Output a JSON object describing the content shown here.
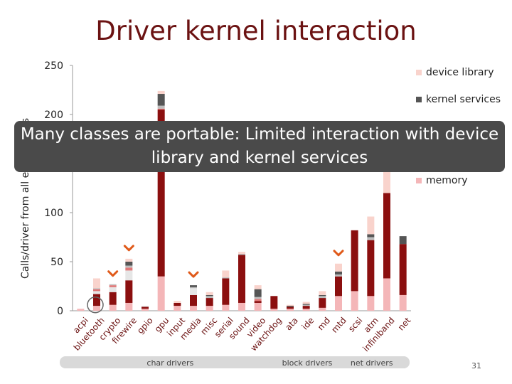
{
  "slide": {
    "title": "Driver kernel interaction",
    "callout": "Many classes are portable: Limited interaction with device library and kernel services",
    "slide_number": "31"
  },
  "chart_data": {
    "type": "bar",
    "stacked": true,
    "ylabel": "Calls/driver from all entry points",
    "ylim": [
      0,
      250
    ],
    "yticks": [
      0,
      50,
      100,
      200,
      250
    ],
    "categories": [
      "acpi",
      "bluetooth",
      "crypto",
      "firewire",
      "gpio",
      "gpu",
      "input",
      "media",
      "misc",
      "serial",
      "sound",
      "video",
      "watchdog",
      "ata",
      "ide",
      "md",
      "mtd",
      "scsi",
      "atm",
      "infiniband",
      "net"
    ],
    "series": [
      {
        "name": "memory",
        "color": "#f4b6b8",
        "values": [
          2,
          5,
          6,
          8,
          2,
          35,
          5,
          5,
          5,
          6,
          8,
          8,
          2,
          2,
          2,
          3,
          15,
          20,
          15,
          33,
          16
        ]
      },
      {
        "name": "",
        "color": "#8b0f0f",
        "values": [
          0,
          12,
          13,
          23,
          2,
          170,
          3,
          11,
          8,
          27,
          49,
          2,
          13,
          2,
          3,
          10,
          20,
          62,
          57,
          87,
          52
        ]
      },
      {
        "name": "",
        "color": "#e6e6e6",
        "values": [
          0,
          3,
          5,
          10,
          1,
          0,
          0,
          7,
          0,
          0,
          0,
          0,
          0,
          0,
          0,
          0,
          0,
          0,
          0,
          0,
          0
        ]
      },
      {
        "name": "",
        "color": "#e07878",
        "values": [
          0,
          2,
          2,
          3,
          0,
          1,
          0,
          0,
          0,
          0,
          0,
          2,
          0,
          0,
          0,
          0,
          0,
          0,
          0,
          0,
          0
        ]
      },
      {
        "name": "",
        "color": "#bdbdbd",
        "values": [
          0,
          1,
          1,
          2,
          0,
          3,
          0,
          1,
          2,
          1,
          1,
          2,
          0,
          0,
          1,
          2,
          2,
          0,
          3,
          0,
          0
        ]
      },
      {
        "name": "kernel services",
        "color": "#555555",
        "values": [
          0,
          0,
          0,
          4,
          0,
          12,
          0,
          2,
          1,
          0,
          0,
          8,
          0,
          1,
          1,
          1,
          3,
          0,
          3,
          0,
          8
        ]
      },
      {
        "name": "device library",
        "color": "#f9d3cc",
        "values": [
          0,
          10,
          0,
          3,
          0,
          3,
          2,
          0,
          3,
          7,
          2,
          4,
          0,
          1,
          2,
          4,
          8,
          0,
          18,
          40,
          0
        ]
      }
    ],
    "legend": [
      "device library",
      "kernel services",
      "memory"
    ],
    "legend_position": "right",
    "highlighted_categories": [
      "crypto",
      "firewire",
      "media",
      "mtd"
    ],
    "circled_category": "bluetooth",
    "groups": [
      {
        "label": "char drivers",
        "from": "acpi",
        "to": "watchdog"
      },
      {
        "label": "block drivers",
        "from": "ata",
        "to": "mtd"
      },
      {
        "label": "net drivers",
        "from": "scsi",
        "to": "net"
      }
    ]
  }
}
